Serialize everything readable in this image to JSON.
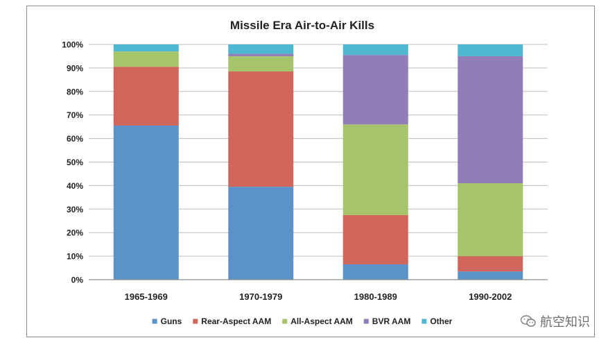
{
  "chart_data": {
    "type": "bar",
    "stacked": true,
    "title": "Missile Era Air-to-Air Kills",
    "xlabel": "",
    "ylabel": "",
    "ylim": [
      0,
      100
    ],
    "y_ticks": [
      0,
      10,
      20,
      30,
      40,
      50,
      60,
      70,
      80,
      90,
      100
    ],
    "y_tick_labels": [
      "0%",
      "10%",
      "20%",
      "30%",
      "40%",
      "50%",
      "60%",
      "70%",
      "80%",
      "90%",
      "100%"
    ],
    "categories": [
      "1965-1969",
      "1970-1979",
      "1980-1989",
      "1990-2002"
    ],
    "series": [
      {
        "name": "Guns",
        "color": "#5b93c9",
        "values": [
          65.5,
          39.5,
          6.5,
          3.5
        ]
      },
      {
        "name": "Rear-Aspect AAM",
        "color": "#d0655c",
        "values": [
          25,
          49,
          21,
          6.5
        ]
      },
      {
        "name": "All-Aspect AAM",
        "color": "#a6c46a",
        "values": [
          6.5,
          6.5,
          38.5,
          31
        ]
      },
      {
        "name": "BVR AAM",
        "color": "#917db8",
        "values": [
          0,
          1,
          29.5,
          54
        ]
      },
      {
        "name": "Other",
        "color": "#4fb8d0",
        "values": [
          3,
          4,
          4.5,
          5
        ]
      }
    ],
    "legend_position": "bottom",
    "grid": true
  },
  "watermark": {
    "text": "航空知识",
    "icon": "wechat-logo-icon"
  }
}
